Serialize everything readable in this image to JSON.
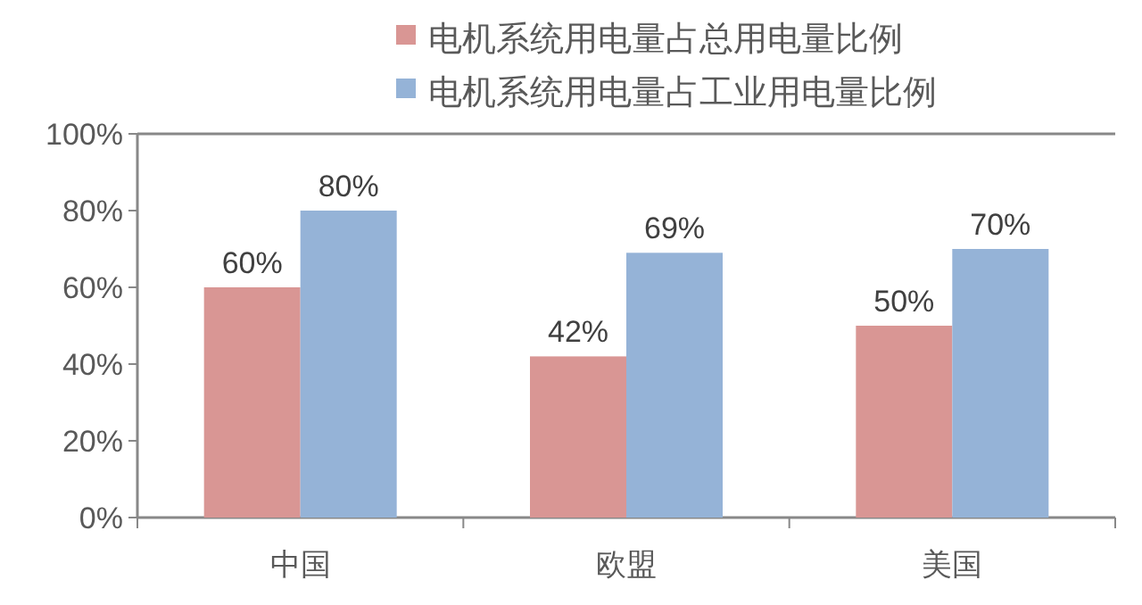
{
  "chart_data": {
    "type": "bar",
    "categories": [
      "中国",
      "欧盟",
      "美国"
    ],
    "series": [
      {
        "name": "电机系统用电量占总用电量比例",
        "color": "#d99694",
        "values": [
          60,
          42,
          50
        ],
        "value_labels": [
          "60%",
          "42%",
          "50%"
        ]
      },
      {
        "name": "电机系统用电量占工业用电量比例",
        "color": "#95b3d7",
        "values": [
          80,
          69,
          70
        ],
        "value_labels": [
          "80%",
          "69%",
          "70%"
        ]
      }
    ],
    "ylim": [
      0,
      100
    ],
    "yticks": [
      {
        "value": 0,
        "label": "0%"
      },
      {
        "value": 20,
        "label": "20%"
      },
      {
        "value": 40,
        "label": "40%"
      },
      {
        "value": 60,
        "label": "60%"
      },
      {
        "value": 80,
        "label": "80%"
      },
      {
        "value": 100,
        "label": "100%"
      }
    ],
    "legend": "top",
    "grid": false
  }
}
